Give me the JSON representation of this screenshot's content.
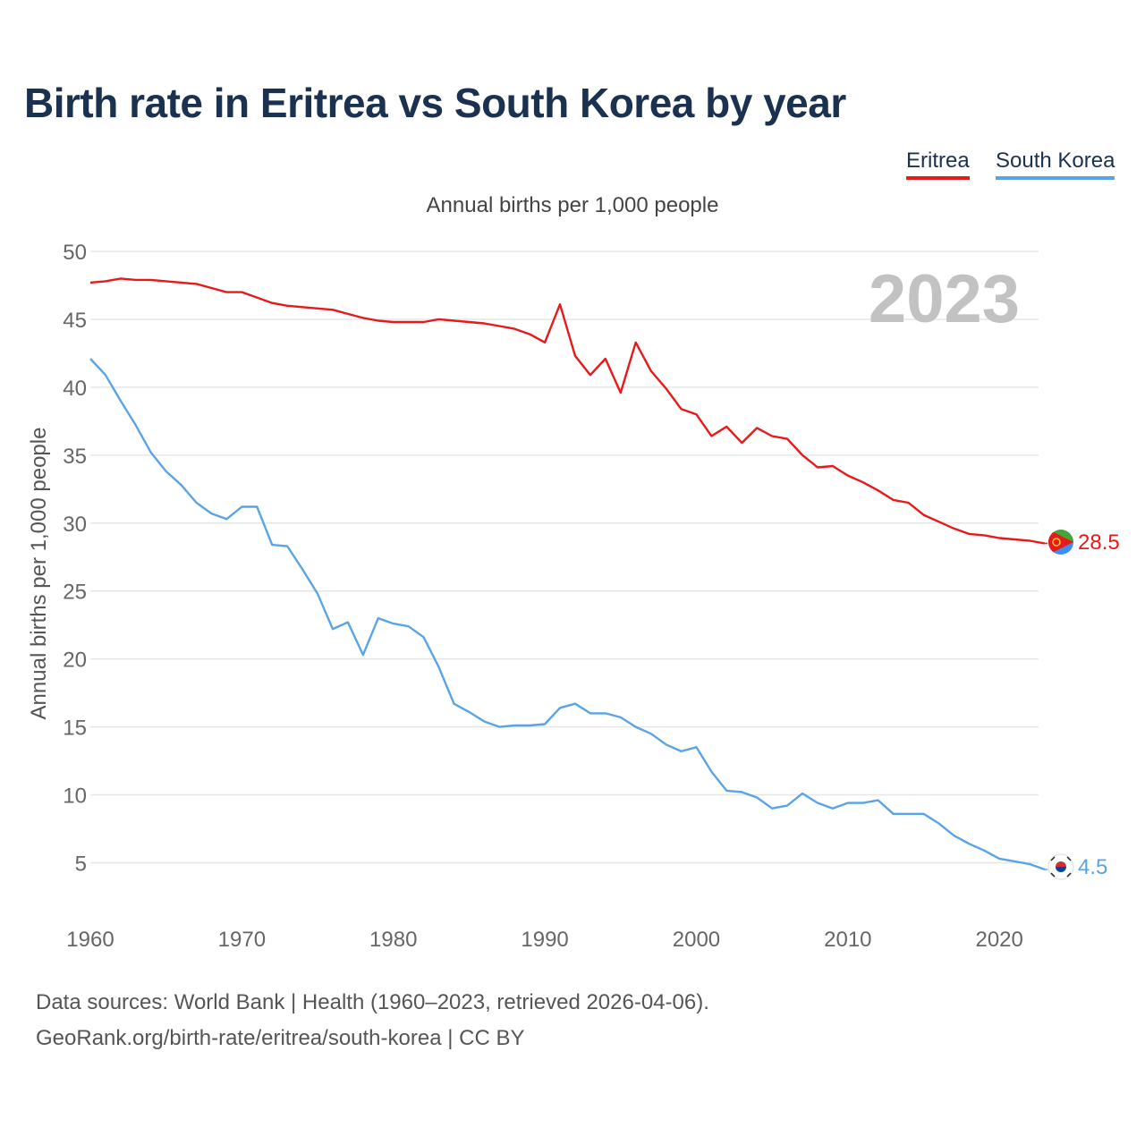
{
  "title": "Birth rate in Eritrea vs South Korea by year",
  "subtitle": "Annual births per 1,000 people",
  "legend": [
    "Eritrea",
    "South Korea"
  ],
  "year_watermark": "2023",
  "end_labels": {
    "eritrea": "28.5",
    "korea": "4.5"
  },
  "colors": {
    "eritrea": "#e8191a",
    "korea": "#5aa4e6",
    "title": "#1b3150",
    "grid": "#e6e6e6"
  },
  "icons": {
    "eritrea": "eritrea-flag-icon",
    "korea": "south-korea-flag-icon"
  },
  "sources": {
    "line1": "Data sources: World Bank | Health (1960–2023, retrieved 2026-04-06).",
    "line2": "GeoRank.org/birth-rate/eritrea/south-korea | CC BY"
  },
  "chart_data": {
    "type": "line",
    "title": "Birth rate in Eritrea vs South Korea by year",
    "xlabel": "",
    "ylabel": "Annual births per 1,000 people",
    "xlim": [
      1960,
      2023
    ],
    "ylim": [
      2,
      50
    ],
    "xticks": [
      1960,
      1970,
      1980,
      1990,
      2000,
      2010,
      2020
    ],
    "yticks": [
      5,
      10,
      15,
      20,
      25,
      30,
      35,
      40,
      45,
      50
    ],
    "grid": true,
    "legend_position": "top-right",
    "x": [
      1960,
      1961,
      1962,
      1963,
      1964,
      1965,
      1966,
      1967,
      1968,
      1969,
      1970,
      1971,
      1972,
      1973,
      1974,
      1975,
      1976,
      1977,
      1978,
      1979,
      1980,
      1981,
      1982,
      1983,
      1984,
      1985,
      1986,
      1987,
      1988,
      1989,
      1990,
      1991,
      1992,
      1993,
      1994,
      1995,
      1996,
      1997,
      1998,
      1999,
      2000,
      2001,
      2002,
      2003,
      2004,
      2005,
      2006,
      2007,
      2008,
      2009,
      2010,
      2011,
      2012,
      2013,
      2014,
      2015,
      2016,
      2017,
      2018,
      2019,
      2020,
      2021,
      2022,
      2023
    ],
    "series": [
      {
        "name": "Eritrea",
        "values": [
          47.7,
          47.8,
          48.0,
          47.9,
          47.9,
          47.8,
          47.7,
          47.6,
          47.3,
          47.0,
          47.0,
          46.6,
          46.2,
          46.0,
          45.9,
          45.8,
          45.7,
          45.4,
          45.1,
          44.9,
          44.8,
          44.8,
          44.8,
          45.0,
          44.9,
          44.8,
          44.7,
          44.5,
          44.3,
          43.9,
          43.3,
          46.1,
          42.3,
          40.9,
          42.1,
          39.6,
          43.3,
          41.2,
          39.9,
          38.4,
          38.0,
          36.4,
          37.1,
          35.9,
          37.0,
          36.4,
          36.2,
          35.0,
          34.1,
          34.2,
          33.5,
          33.0,
          32.4,
          31.7,
          31.5,
          30.6,
          30.1,
          29.6,
          29.2,
          29.1,
          28.9,
          28.8,
          28.7,
          28.5
        ]
      },
      {
        "name": "South Korea",
        "values": [
          42.1,
          40.9,
          39.0,
          37.2,
          35.2,
          33.8,
          32.8,
          31.5,
          30.7,
          30.3,
          31.2,
          31.2,
          28.4,
          28.3,
          26.6,
          24.8,
          22.2,
          22.7,
          20.3,
          23.0,
          22.6,
          22.4,
          21.6,
          19.4,
          16.7,
          16.1,
          15.4,
          15.0,
          15.1,
          15.1,
          15.2,
          16.4,
          16.7,
          16.0,
          16.0,
          15.7,
          15.0,
          14.5,
          13.7,
          13.2,
          13.5,
          11.7,
          10.3,
          10.2,
          9.8,
          9.0,
          9.2,
          10.1,
          9.4,
          9.0,
          9.4,
          9.4,
          9.6,
          8.6,
          8.6,
          8.6,
          7.9,
          7.0,
          6.4,
          5.9,
          5.3,
          5.1,
          4.9,
          4.5
        ]
      }
    ]
  }
}
